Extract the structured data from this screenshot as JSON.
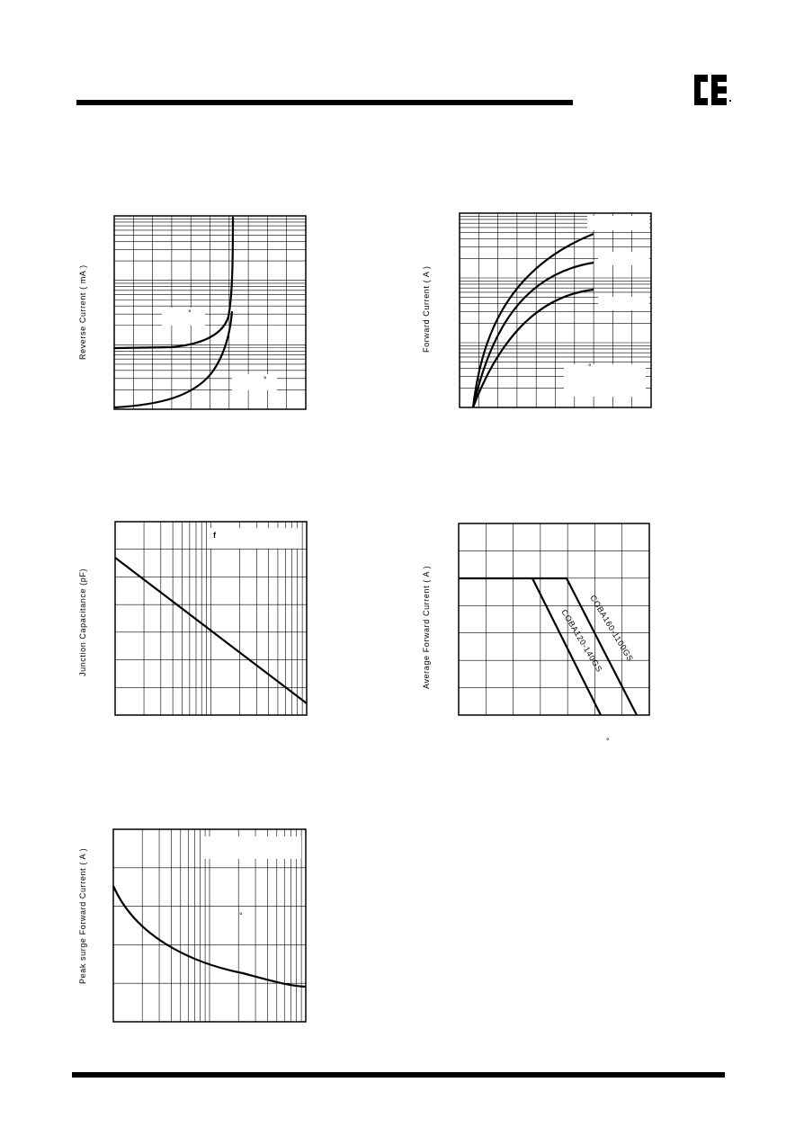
{
  "charts": [
    {
      "y_label": "Reverse Current ( mA )",
      "notes": [
        "°",
        "°"
      ]
    },
    {
      "y_label": "Forward Current ( A )",
      "notes": [
        "°"
      ]
    },
    {
      "y_label": "Junction Capacitance  (pF)",
      "notes": [
        "f"
      ]
    },
    {
      "y_label": "Average Forward Current ( A )",
      "notes": [
        "COBA160-1100GS",
        "COBA120-140GS",
        "°"
      ]
    },
    {
      "y_label": "Peak surge Forward Current ( A )",
      "notes": [
        "°"
      ]
    }
  ]
}
